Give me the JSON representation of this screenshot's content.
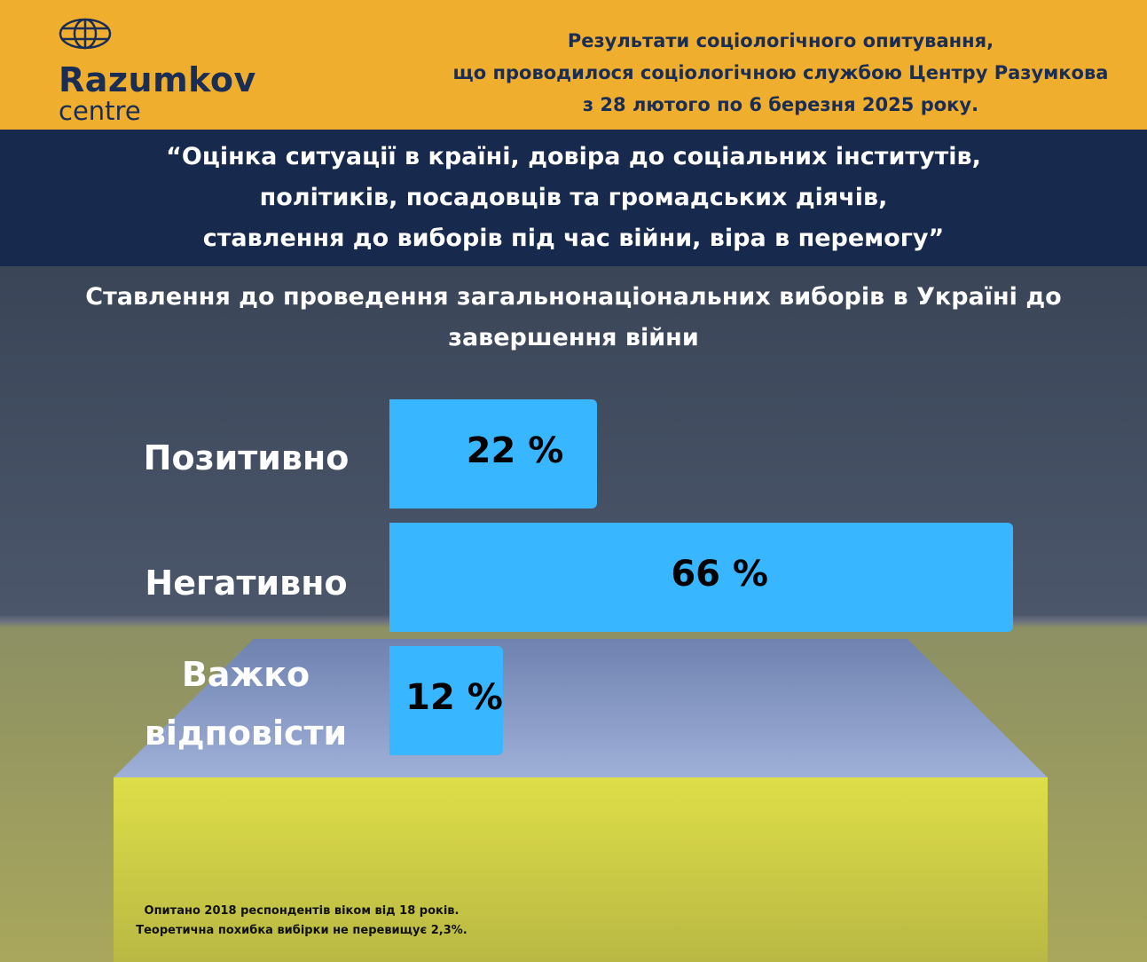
{
  "header": {
    "logo_name": "Razumkov",
    "logo_sub": "centre",
    "survey_lines": [
      "Результати соціологічного опитування,",
      "що проводилося соціологічною службою Центру Разумкова",
      "з 28 лютого по 6 березня 2025 року."
    ]
  },
  "banner": {
    "lines": [
      "“Оцінка ситуації в країні, довіра до соціальних інститутів,",
      "політиків, посадовців та громадських діячів,",
      "ставлення до виборів під час війни, віра в перемогу”"
    ]
  },
  "chart_data": {
    "type": "bar",
    "orientation": "horizontal",
    "title": "Ставлення до проведення загальнонаціональних виборів в Україні до завершення війни",
    "categories": [
      "Позитивно",
      "Негативно",
      "Важко відповісти"
    ],
    "values": [
      22,
      66,
      12
    ],
    "value_labels": [
      "22 %",
      "66 %",
      "12 %"
    ],
    "unit": "%",
    "bar_color": "#38b6ff",
    "xlim": [
      0,
      66
    ]
  },
  "footer": {
    "lines": [
      "Опитано 2018 респондентів віком від 18 років.",
      "Теоретична похибка вибірки не перевищує 2,3%."
    ]
  },
  "colors": {
    "header_bg": "#f0ae2e",
    "banner_bg": "#172a4d",
    "brand_text": "#1a2d55"
  }
}
